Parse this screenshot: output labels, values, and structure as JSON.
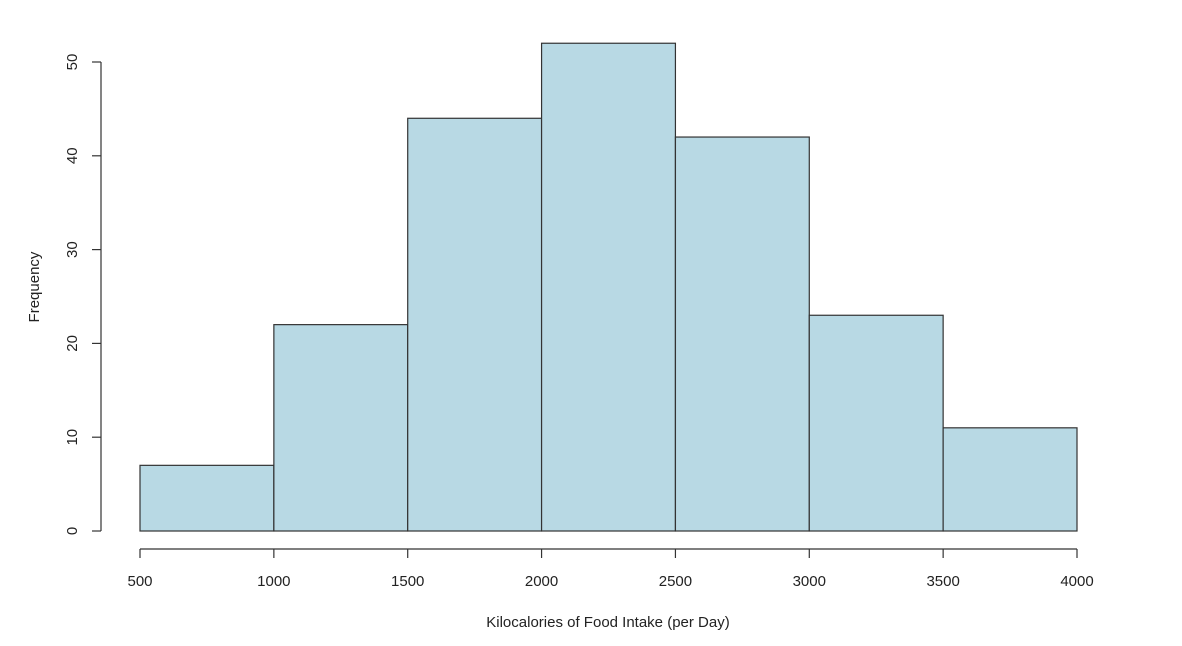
{
  "chart_data": {
    "type": "bar",
    "subtype": "histogram",
    "bins": [
      {
        "start": 500,
        "end": 1000,
        "value": 7
      },
      {
        "start": 1000,
        "end": 1500,
        "value": 22
      },
      {
        "start": 1500,
        "end": 2000,
        "value": 44
      },
      {
        "start": 2000,
        "end": 2500,
        "value": 52
      },
      {
        "start": 2500,
        "end": 3000,
        "value": 42
      },
      {
        "start": 3000,
        "end": 3500,
        "value": 23
      },
      {
        "start": 3500,
        "end": 4000,
        "value": 11
      }
    ],
    "xlabel": "Kilocalories of Food Intake (per Day)",
    "ylabel": "Frequency",
    "xlim": [
      500,
      4000
    ],
    "ylim": [
      0,
      52
    ],
    "xticks": [
      "500",
      "1000",
      "1500",
      "2000",
      "2500",
      "3000",
      "3500",
      "4000"
    ],
    "yticks": [
      "0",
      "10",
      "20",
      "30",
      "40",
      "50"
    ],
    "grid": false,
    "bar_color": "#b8d9e4",
    "edge_color": "#333333"
  }
}
